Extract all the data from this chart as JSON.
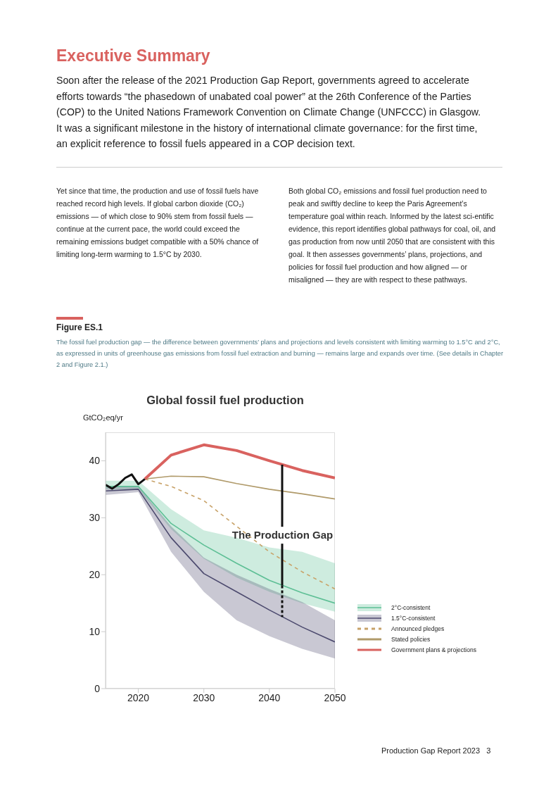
{
  "chart_data": {
    "type": "line",
    "title": "Global fossil fuel production",
    "ylabel": "GtCO₂eq/yr",
    "annotations": [
      "Executive Summary",
      "Soon after the release of the 2021 Production Gap Report, governments agreed to accelerate efforts towards “the phasedown of unabated coal power” at the 26th Conference of the Parties (COP) to the United Nations Framework Convention on Climate Change (UNFCCC) in Glasgow. It was a significant milestone in the history of international climate governance: for the first time, an explicit reference to fossil fuels appeared in a COP decision text.",
      "Yet since that time, the production and use of fossil fuels have reached record high levels. If global carbon dioxide (CO₂) emissions — of which close to 90% stem from fossil fuels — continue at the current pace, the world could exceed the remaining emissions budget compatible with a 50% chance of limiting long-term warming to 1.5°C by 2030.",
      "Both global CO₂ emissions and fossil fuel production need to peak and swiftly decline to keep the Paris Agreement’s temperature goal within reach. Informed by the latest sci-entific evidence, this report identifies global pathways for coal, oil, and gas production from now until 2050 that are consistent with this goal. It then assesses governments’ plans, projections, and policies for fossil fuel production and how aligned — or misaligned — they are with respect to these pathways.",
      "Figure ES.1",
      "The fossil fuel production gap — the difference between governments’ plans and projections and levels consistent with limiting warming to 1.5°C and 2°C, as expressed in units of greenhouse gas emissions from fossil fuel extraction and burning — remains large and expands over time. (See details in Chapter 2 and Figure 2.1.)",
      {
        "text": "The Production Gap",
        "x": 2042,
        "y": 39.3
      },
      "Production Gap Report 2023   3"
    ],
    "xlim": [
      2015,
      2050
    ],
    "xticks": [
      2020,
      2030,
      2040,
      2050
    ],
    "ylim": [
      0,
      45
    ],
    "yticks": [
      0,
      10,
      20,
      30,
      40
    ],
    "legend": "right",
    "marker": "none",
    "series": [
      {
        "name": "2°C-consistent",
        "color": "#5dbf95",
        "x": [
          2015,
          2020,
          2025,
          2030,
          2035,
          2040,
          2045,
          2050
        ],
        "values": [
          35.5,
          35.5,
          29.0,
          25.2,
          22.0,
          19.0,
          16.8,
          15.0
        ],
        "lower": [
          35.0,
          35.0,
          28.0,
          22.8,
          19.5,
          17.0,
          15.0,
          13.5
        ],
        "upper": [
          36.5,
          36.5,
          31.5,
          27.8,
          26.5,
          24.8,
          24.0,
          22.0
        ]
      },
      {
        "name": "1.5°C-consistent",
        "color": "#4c4a6e",
        "x": [
          2015,
          2020,
          2025,
          2030,
          2035,
          2040,
          2045,
          2050
        ],
        "values": [
          34.7,
          35.0,
          26.5,
          20.2,
          17.0,
          13.8,
          10.8,
          8.2
        ],
        "lower": [
          34.0,
          34.5,
          24.0,
          17.0,
          12.0,
          9.2,
          7.0,
          5.3
        ],
        "upper": [
          35.5,
          35.5,
          28.5,
          23.0,
          20.0,
          17.5,
          15.2,
          12.0
        ]
      },
      {
        "name": "Announced pledges",
        "line_style": "dashed",
        "color": "#c8a268",
        "x": [
          2021,
          2025,
          2030,
          2035,
          2040,
          2045,
          2050
        ],
        "values": [
          36.8,
          35.5,
          33.0,
          28.5,
          24.0,
          20.5,
          17.5
        ]
      },
      {
        "name": "Stated policies",
        "color": "#b09a6a",
        "x": [
          2021,
          2025,
          2030,
          2035,
          2040,
          2045,
          2050
        ],
        "values": [
          36.8,
          37.3,
          37.2,
          36.0,
          35.0,
          34.2,
          33.3
        ]
      },
      {
        "name": "Government plans & projections",
        "color": "#d9625f",
        "x": [
          2021,
          2025,
          2030,
          2035,
          2040,
          2045,
          2050
        ],
        "values": [
          36.8,
          41.0,
          42.8,
          41.8,
          40.0,
          38.3,
          37.0
        ]
      },
      {
        "color": "#111111",
        "x": [
          2015,
          2016,
          2017,
          2018,
          2019,
          2020,
          2021
        ],
        "values": [
          35.8,
          35.1,
          35.9,
          37.0,
          37.6,
          35.9,
          36.8
        ]
      }
    ]
  }
}
